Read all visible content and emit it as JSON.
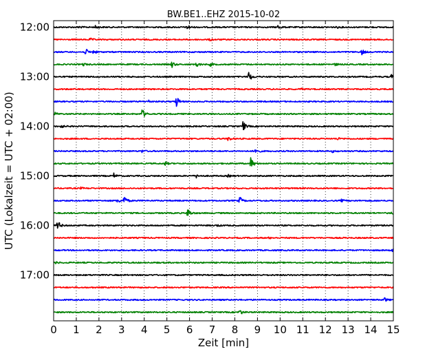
{
  "chart_data": {
    "type": "line",
    "title": "BW.BE1..EHZ 2015-10-02",
    "xlabel": "Zeit  [min]",
    "ylabel": "UTC (Lokalzeit = UTC + 02:00)",
    "xlim": [
      0,
      15
    ],
    "x_ticks": [
      "0",
      "1",
      "2",
      "3",
      "4",
      "5",
      "6",
      "7",
      "8",
      "9",
      "10",
      "11",
      "12",
      "13",
      "14",
      "15"
    ],
    "y_ticks": [
      "12:00",
      "13:00",
      "14:00",
      "15:00",
      "16:00",
      "17:00"
    ],
    "grid": "vertical dotted at each minute",
    "trace_interval_min": 15,
    "colors": [
      "#000000",
      "#ff0000",
      "#0000ff",
      "#008000"
    ],
    "traces": [
      {
        "start": "12:00",
        "events": [
          {
            "t": 1.85,
            "a": 0.25
          },
          {
            "t": 5.9,
            "a": 0.4
          },
          {
            "t": 9.9,
            "a": 0.3
          },
          {
            "t": 1.1,
            "a": 0.15
          },
          {
            "t": 12.5,
            "a": 0.1
          }
        ]
      },
      {
        "start": "12:15",
        "events": [
          {
            "t": 1.6,
            "a": 0.2
          },
          {
            "t": 6.9,
            "a": 0.15
          }
        ]
      },
      {
        "start": "12:30",
        "events": [
          {
            "t": 1.4,
            "a": 0.5
          },
          {
            "t": 1.75,
            "a": 0.3
          },
          {
            "t": 13.6,
            "a": 0.45
          }
        ]
      },
      {
        "start": "12:45",
        "events": [
          {
            "t": 5.2,
            "a": 0.5
          },
          {
            "t": 6.3,
            "a": 0.4
          },
          {
            "t": 6.9,
            "a": 0.25
          },
          {
            "t": 1.3,
            "a": 0.2
          },
          {
            "t": 12.4,
            "a": 0.2
          }
        ]
      },
      {
        "start": "13:00",
        "events": [
          {
            "t": 8.6,
            "a": 0.9
          },
          {
            "t": 14.9,
            "a": 0.3
          }
        ]
      },
      {
        "start": "13:15",
        "events": [
          {
            "t": 10.9,
            "a": 0.1
          }
        ]
      },
      {
        "start": "13:30",
        "events": [
          {
            "t": 5.4,
            "a": 1.0
          },
          {
            "t": 4.2,
            "a": 0.15
          }
        ]
      },
      {
        "start": "13:45",
        "events": [
          {
            "t": 3.9,
            "a": 0.8
          },
          {
            "t": 0.05,
            "a": 0.2
          }
        ]
      },
      {
        "start": "14:00",
        "events": [
          {
            "t": 8.35,
            "a": 0.8
          },
          {
            "t": 0.3,
            "a": 0.25
          }
        ]
      },
      {
        "start": "14:15",
        "events": [
          {
            "t": 7.7,
            "a": 0.35
          },
          {
            "t": 12.5,
            "a": 0.2
          }
        ]
      },
      {
        "start": "14:30",
        "events": [
          {
            "t": 8.9,
            "a": 0.45
          },
          {
            "t": 3.9,
            "a": 0.15
          },
          {
            "t": 12.3,
            "a": 0.15
          }
        ]
      },
      {
        "start": "14:45",
        "events": [
          {
            "t": 8.7,
            "a": 0.9
          },
          {
            "t": 4.9,
            "a": 0.3
          }
        ]
      },
      {
        "start": "15:00",
        "events": [
          {
            "t": 2.65,
            "a": 0.35
          },
          {
            "t": 6.3,
            "a": 0.2
          },
          {
            "t": 7.7,
            "a": 0.15
          }
        ]
      },
      {
        "start": "15:15",
        "events": [
          {
            "t": 1.2,
            "a": 0.1
          }
        ]
      },
      {
        "start": "15:30",
        "events": [
          {
            "t": 3.1,
            "a": 0.8
          },
          {
            "t": 2.8,
            "a": 0.4
          },
          {
            "t": 8.2,
            "a": 0.6
          },
          {
            "t": 12.7,
            "a": 0.2
          }
        ]
      },
      {
        "start": "15:45",
        "events": [
          {
            "t": 5.9,
            "a": 0.8
          },
          {
            "t": 14.9,
            "a": 0.2
          }
        ]
      },
      {
        "start": "16:00",
        "events": [
          {
            "t": 0.15,
            "a": 0.9
          },
          {
            "t": 7.2,
            "a": 0.15
          }
        ]
      },
      {
        "start": "16:15",
        "events": [
          {
            "t": 9.5,
            "a": 0.1
          }
        ]
      },
      {
        "start": "16:30",
        "events": [
          {
            "t": 14.95,
            "a": 0.25
          }
        ]
      },
      {
        "start": "16:45",
        "events": [
          {
            "t": 0.1,
            "a": 0.15
          }
        ]
      },
      {
        "start": "17:00",
        "events": []
      },
      {
        "start": "17:15",
        "events": []
      },
      {
        "start": "17:30",
        "events": [
          {
            "t": 14.6,
            "a": 0.3
          }
        ]
      },
      {
        "start": "17:45",
        "events": [
          {
            "t": 8.2,
            "a": 0.45
          }
        ]
      }
    ]
  }
}
